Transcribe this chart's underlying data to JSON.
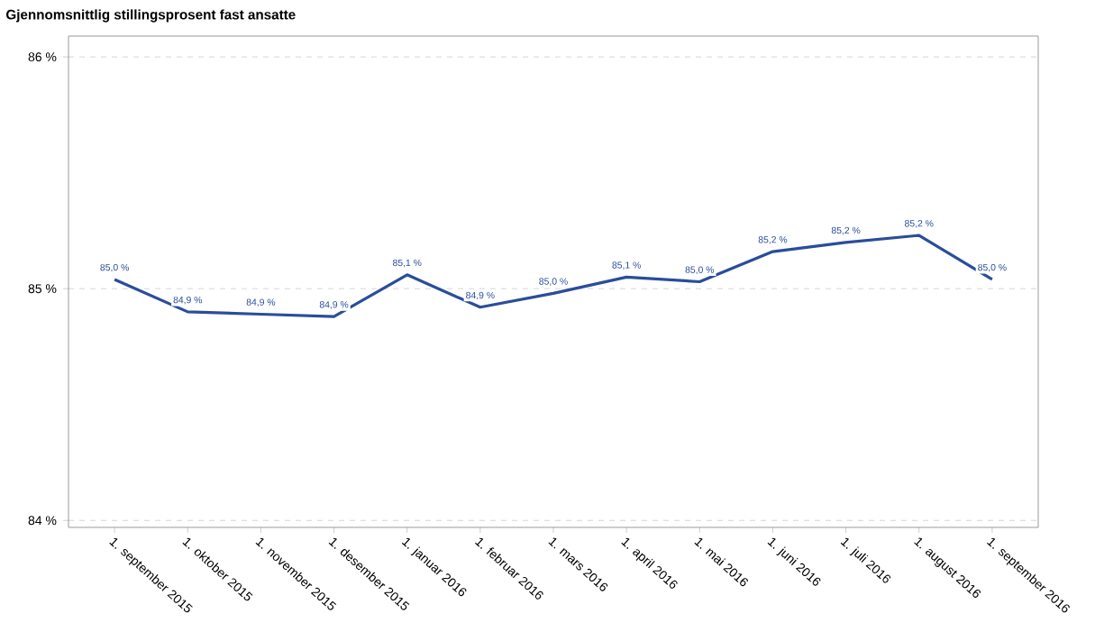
{
  "chart_data": {
    "type": "line",
    "title": "Gjennomsnittlig stillingsprosent fast ansatte",
    "categories": [
      "1. september 2015",
      "1. oktober 2015",
      "1. november 2015",
      "1. desember 2015",
      "1. januar 2016",
      "1. februar 2016",
      "1. mars 2016",
      "1. april 2016",
      "1. mai 2016",
      "1. juni 2016",
      "1. juli 2016",
      "1. august 2016",
      "1. september 2016"
    ],
    "series": [
      {
        "color": "#2a4d9b",
        "values": [
          85.04,
          84.9,
          84.89,
          84.88,
          85.06,
          84.92,
          84.98,
          85.05,
          85.03,
          85.16,
          85.2,
          85.23,
          85.04
        ],
        "value_labels": [
          "85,0 %",
          "84,9 %",
          "84,9 %",
          "84,9 %",
          "85,1 %",
          "84,9 %",
          "85,0 %",
          "85,1 %",
          "85,0 %",
          "85,2 %",
          "85,2 %",
          "85,2 %",
          "85,0 %"
        ]
      }
    ],
    "ylim": [
      83.97,
      86.09
    ],
    "yticks": [
      {
        "value": 84,
        "label": "84 %"
      },
      {
        "value": 85,
        "label": "85 %"
      },
      {
        "value": 86,
        "label": "86 %"
      }
    ],
    "grid": "y",
    "marker": "none",
    "line_style": "solid"
  }
}
